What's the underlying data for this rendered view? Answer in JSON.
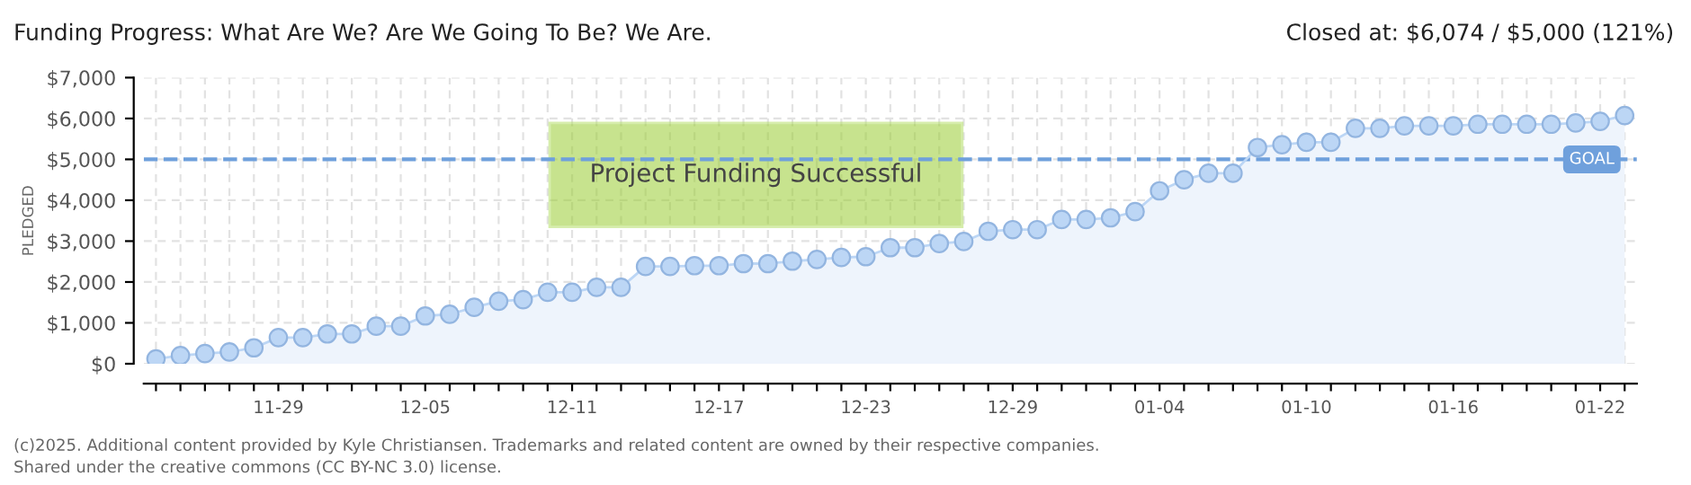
{
  "chart_data": {
    "type": "area",
    "title": "Funding Progress: What Are We? Are We Going To Be? We Are.",
    "subtitle": "Closed at: $6,074 / $5,000 (121%)",
    "ylabel": "PLEDGED",
    "categories": [
      null,
      null,
      null,
      null,
      null,
      "11-29",
      null,
      null,
      null,
      null,
      null,
      "12-05",
      null,
      null,
      null,
      null,
      null,
      "12-11",
      null,
      null,
      null,
      null,
      null,
      "12-17",
      null,
      null,
      null,
      null,
      null,
      "12-23",
      null,
      null,
      null,
      null,
      null,
      "12-29",
      null,
      null,
      null,
      null,
      null,
      "01-04",
      null,
      null,
      null,
      null,
      null,
      "01-10",
      null,
      null,
      null,
      null,
      null,
      "01-16",
      null,
      null,
      null,
      null,
      null,
      "01-22",
      null
    ],
    "series": [
      {
        "color": "#bcd6f5",
        "values": [
          120,
          200,
          250,
          290,
          390,
          640,
          640,
          730,
          730,
          920,
          920,
          1170,
          1210,
          1380,
          1530,
          1570,
          1750,
          1750,
          1870,
          1870,
          2380,
          2380,
          2400,
          2400,
          2450,
          2450,
          2510,
          2550,
          2600,
          2620,
          2840,
          2840,
          2940,
          2990,
          3240,
          3280,
          3280,
          3530,
          3530,
          3570,
          3720,
          4230,
          4500,
          4660,
          4660,
          5290,
          5360,
          5420,
          5420,
          5760,
          5760,
          5820,
          5820,
          5820,
          5860,
          5860,
          5860,
          5860,
          5890,
          5930,
          6074
        ]
      }
    ],
    "ylim": [
      0,
      7000
    ],
    "yticks": [
      {
        "value": 0,
        "label": "$0"
      },
      {
        "value": 1000,
        "label": "$1,000"
      },
      {
        "value": 2000,
        "label": "$2,000"
      },
      {
        "value": 3000,
        "label": "$3,000"
      },
      {
        "value": 4000,
        "label": "$4,000"
      },
      {
        "value": 5000,
        "label": "$5,000"
      },
      {
        "value": 6000,
        "label": "$6,000"
      },
      {
        "value": 7000,
        "label": "$7,000"
      }
    ],
    "ref_lines": [
      {
        "axis": "y",
        "value": 5000,
        "label": "GOAL",
        "color": "#6fa0dc",
        "line_style": "dashed"
      }
    ],
    "annotations": [
      "Project Funding Successful",
      "(c)2025. Additional content provided by Kyle Christiansen. Trademarks and related content are owned by their respective companies.",
      "Shared under the creative commons (CC BY-NC 3.0) license."
    ],
    "grid": true,
    "marker": "circle",
    "line_style": "solid"
  }
}
